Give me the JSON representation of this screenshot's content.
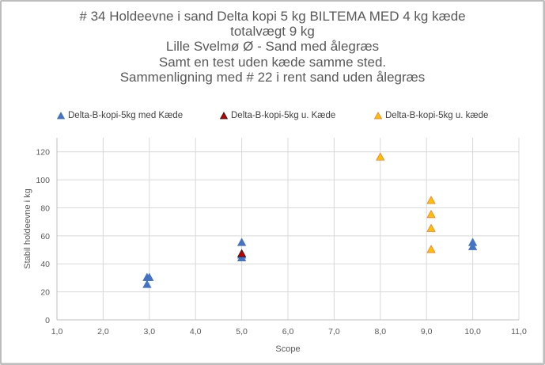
{
  "chart_data": {
    "type": "scatter",
    "title_lines": [
      "# 34 Holdeevne i sand Delta kopi 5 kg BILTEMA MED 4 kg kæde",
      "totalvægt 9 kg",
      "Lille Svelmø Ø - Sand med ålegræs",
      "Samt en test uden kæde samme sted.",
      "Sammenligning med # 22 i rent sand uden ålegræs"
    ],
    "xlabel": "Scope",
    "ylabel": "Stabil holdeevne i kg",
    "xlim": [
      1,
      11
    ],
    "ylim": [
      0,
      130
    ],
    "x_ticks": [
      "1,0",
      "2,0",
      "3,0",
      "4,0",
      "5,0",
      "6,0",
      "7,0",
      "8,0",
      "9,0",
      "10,0",
      "11,0"
    ],
    "y_ticks": [
      "0",
      "20",
      "40",
      "60",
      "80",
      "100",
      "120"
    ],
    "grid": true,
    "legend_position": "top",
    "series": [
      {
        "name": "Delta-B-kopi-5kg med Kæde",
        "marker": "triangle",
        "fill": "#4472c4",
        "stroke": "#4472c4",
        "points": [
          [
            2.95,
            25
          ],
          [
            2.95,
            30
          ],
          [
            3.0,
            30
          ],
          [
            5.0,
            44
          ],
          [
            5.0,
            46
          ],
          [
            5.0,
            55
          ],
          [
            10.0,
            52
          ],
          [
            10.0,
            55
          ]
        ]
      },
      {
        "name": "Delta-B-kopi-5kg u. Kæde",
        "marker": "triangle",
        "fill": "#c00000",
        "stroke": "#1f1f1f",
        "points": [
          [
            5.0,
            47
          ]
        ]
      },
      {
        "name": "Delta-B-kopi-5kg u. kæde",
        "marker": "triangle",
        "fill": "#ffc000",
        "stroke": "#ed7d31",
        "points": [
          [
            8.0,
            116
          ],
          [
            9.1,
            85
          ],
          [
            9.1,
            75
          ],
          [
            9.1,
            65
          ],
          [
            9.1,
            50
          ]
        ]
      }
    ]
  }
}
